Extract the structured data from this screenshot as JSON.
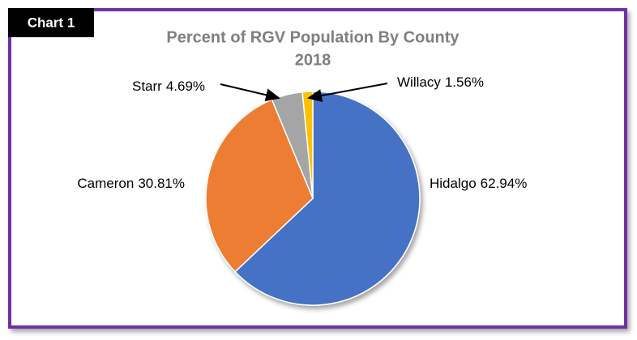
{
  "badge": "Chart 1",
  "chart_data": {
    "type": "pie",
    "title": "Percent of RGV Population By County",
    "subtitle": "2018",
    "categories": [
      "Hidalgo",
      "Cameron",
      "Starr",
      "Willacy"
    ],
    "values": [
      62.94,
      30.81,
      4.69,
      1.56
    ],
    "value_labels": [
      "62.94%",
      "30.81%",
      "4.69%",
      "1.56%"
    ],
    "colors": [
      "#4472c4",
      "#ed7d31",
      "#a5a5a5",
      "#ffc000"
    ],
    "legend": false
  }
}
